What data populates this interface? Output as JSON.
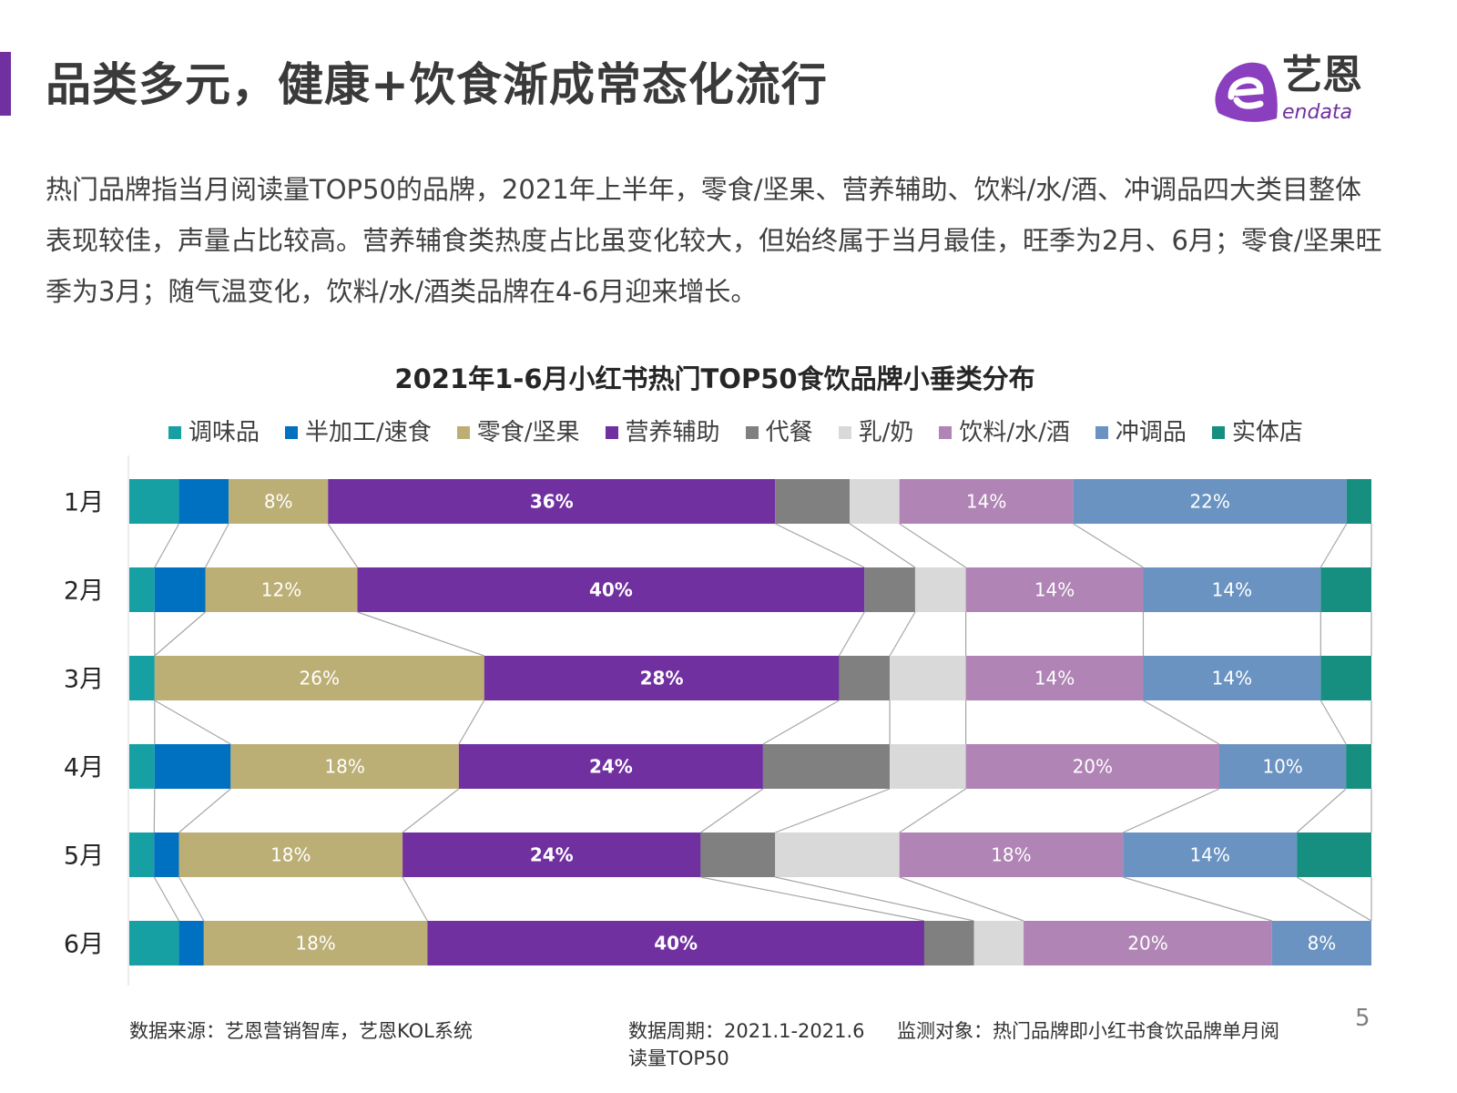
{
  "header": {
    "title": "品类多元，健康+饮食渐成常态化流行",
    "logo_cn": "艺恩",
    "logo_en": "endata"
  },
  "description": "热门品牌指当月阅读量TOP50的品牌，2021年上半年，零食/坚果、营养辅助、饮料/水/酒、冲调品四大类目整体表现较佳，声量占比较高。营养辅食类热度占比虽变化较大，但始终属于当月最佳，旺季为2月、6月；零食/坚果旺季为3月；随气温变化，饮料/水/酒类品牌在4-6月迎来增长。",
  "chart_data": {
    "type": "bar",
    "stacked": "100%",
    "orientation": "horizontal",
    "title": "2021年1-6月小红书热门TOP50食饮品牌小垂类分布",
    "legend_position": "top",
    "categories": [
      "1月",
      "2月",
      "3月",
      "4月",
      "5月",
      "6月"
    ],
    "series": [
      {
        "name": "调味品",
        "color": "#17a0a3",
        "values": [
          4,
          2,
          2,
          2,
          2,
          4
        ]
      },
      {
        "name": "半加工/速食",
        "color": "#0070c0",
        "values": [
          4,
          4,
          0,
          6,
          2,
          2
        ]
      },
      {
        "name": "零食/坚果",
        "color": "#bcaf75",
        "values": [
          8,
          12,
          26,
          18,
          18,
          18
        ],
        "labeled": true
      },
      {
        "name": "营养辅助",
        "color": "#7030a0",
        "values": [
          36,
          40,
          28,
          24,
          24,
          40
        ],
        "labeled": true,
        "bold": true
      },
      {
        "name": "代餐",
        "color": "#808080",
        "values": [
          6,
          4,
          4,
          10,
          6,
          4
        ]
      },
      {
        "name": "乳/奶",
        "color": "#d9d9d9",
        "values": [
          4,
          4,
          6,
          6,
          10,
          4
        ]
      },
      {
        "name": "饮料/水/酒",
        "color": "#b084b4",
        "values": [
          14,
          14,
          14,
          20,
          18,
          20
        ],
        "labeled": true
      },
      {
        "name": "冲调品",
        "color": "#6a93c2",
        "values": [
          22,
          14,
          14,
          10,
          14,
          8
        ],
        "labeled": true
      },
      {
        "name": "实体店",
        "color": "#168f80",
        "values": [
          2,
          4,
          4,
          2,
          6,
          0
        ]
      }
    ],
    "connector_color": "#a6a6a6"
  },
  "footer": {
    "source": "数据来源：艺恩营销智库，艺恩KOL系统",
    "period": "数据周期：2021.1-2021.6",
    "target_line1": "监测对象：热门品牌即小红书食饮品牌单月阅",
    "target_line2": "读量TOP50",
    "page": "5"
  }
}
